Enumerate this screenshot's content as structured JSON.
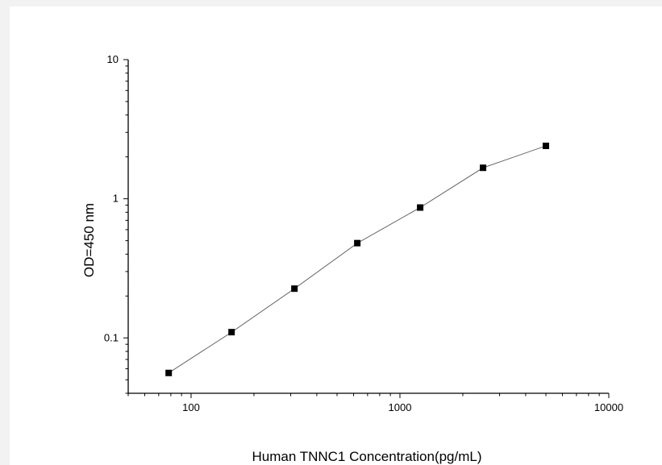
{
  "chart_data": {
    "type": "line",
    "xlabel": "Human TNNC1 Concentration(pg/mL)",
    "ylabel": "OD=450 nm",
    "xscale": "log",
    "yscale": "log",
    "xlim": [
      50,
      10000
    ],
    "ylim": [
      0.04,
      10
    ],
    "xticks": [
      100,
      1000,
      10000
    ],
    "xtick_labels": [
      "100",
      "1000",
      "10000"
    ],
    "yticks": [
      0.1,
      1,
      10
    ],
    "ytick_labels": [
      "0.1",
      "1",
      "10"
    ],
    "grid": false,
    "marker": "square",
    "series": [
      {
        "x": [
          78.125,
          156.25,
          312.5,
          625,
          1250,
          2500,
          5000
        ],
        "y": [
          0.056,
          0.11,
          0.226,
          0.48,
          0.865,
          1.67,
          2.4
        ]
      }
    ]
  }
}
